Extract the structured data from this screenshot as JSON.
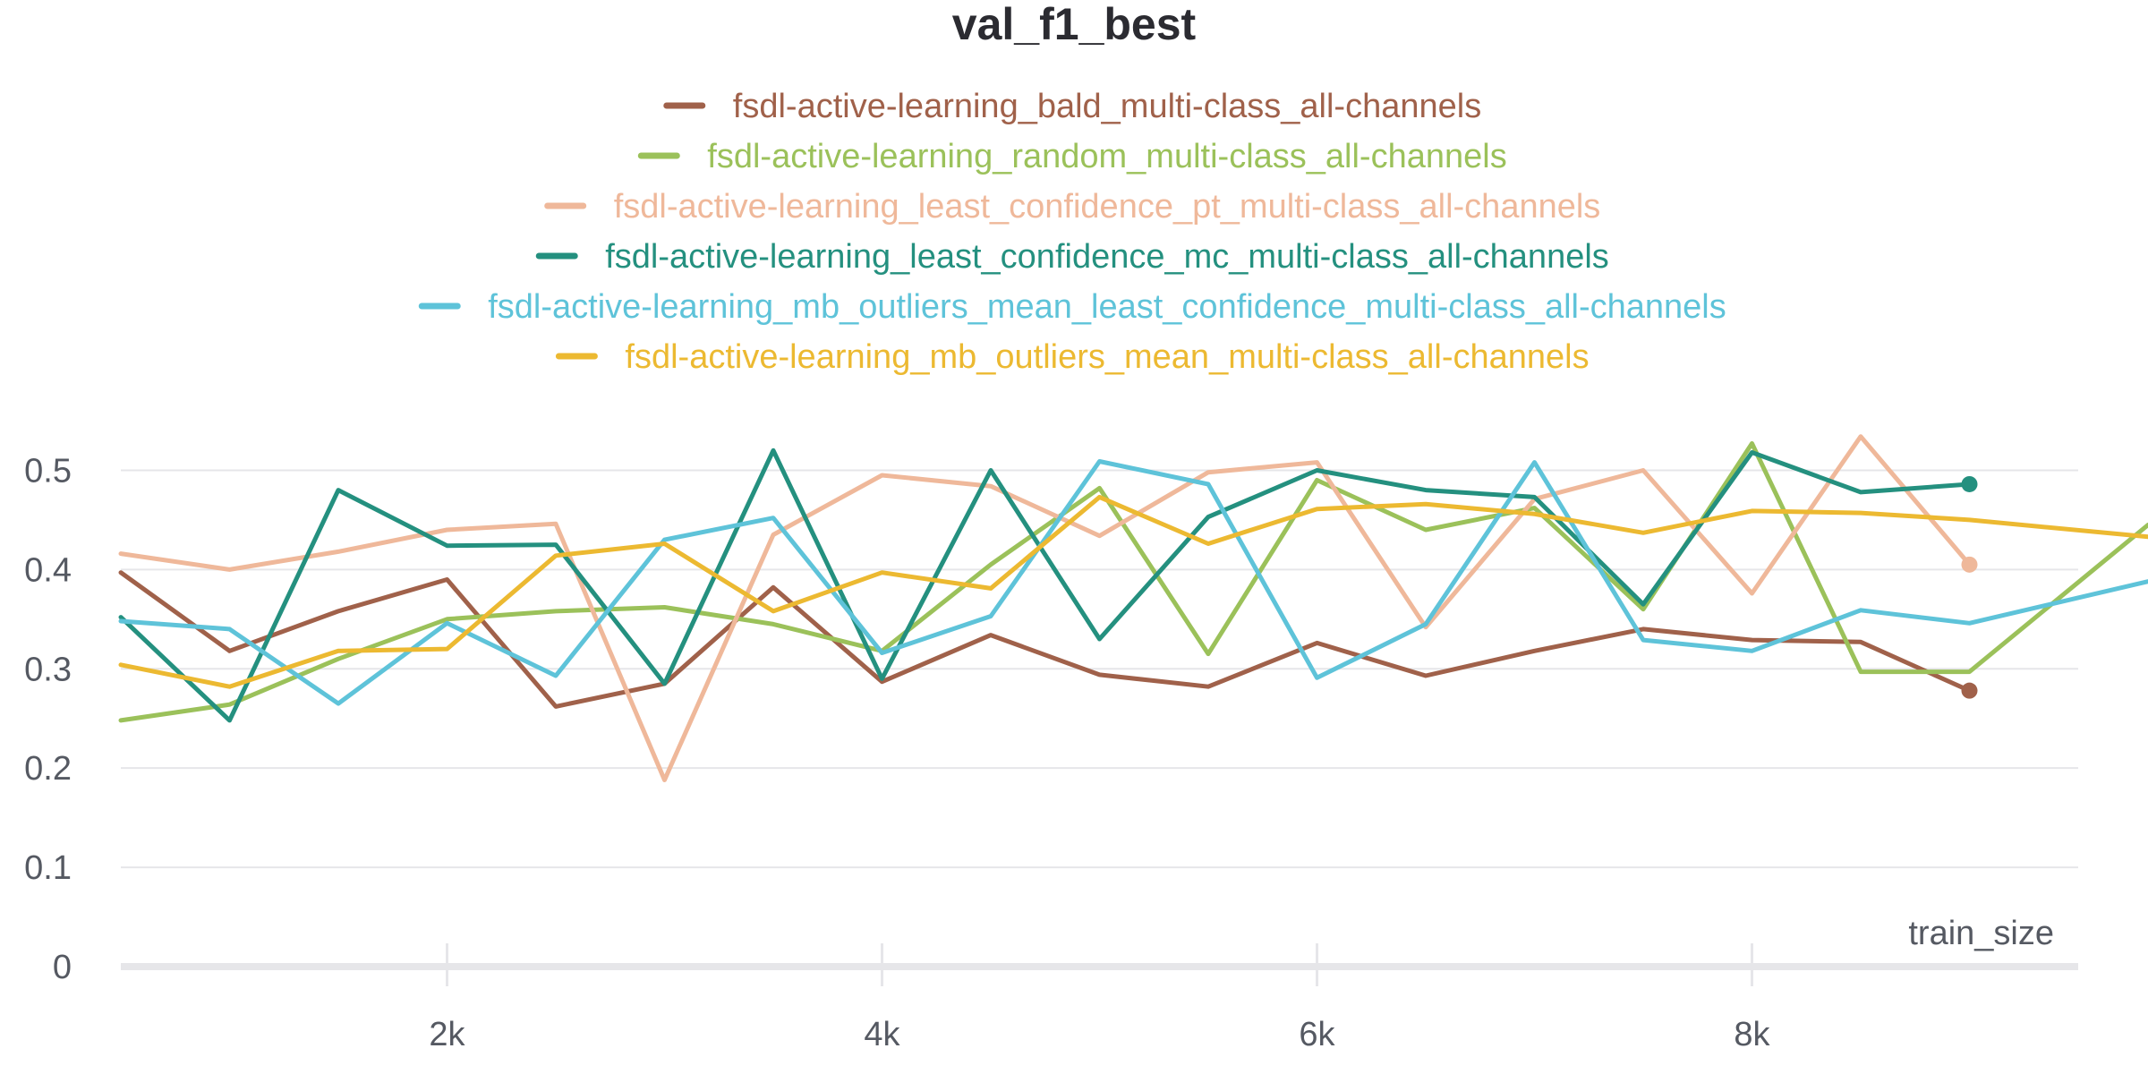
{
  "chart_data": {
    "type": "line",
    "title": "val_f1_best",
    "xlabel": "train_size",
    "ylabel": "",
    "xlim": [
      500,
      9500
    ],
    "ylim": [
      0,
      0.55
    ],
    "grid": true,
    "x_ticks": [
      2000,
      4000,
      6000,
      8000
    ],
    "x_tick_labels": [
      "2k",
      "4k",
      "6k",
      "8k"
    ],
    "y_ticks": [
      0,
      0.1,
      0.2,
      0.3,
      0.4,
      0.5
    ],
    "y_tick_labels": [
      "0",
      "0.1",
      "0.2",
      "0.3",
      "0.4",
      "0.5"
    ],
    "x": [
      500,
      1000,
      1500,
      2000,
      2500,
      3000,
      3500,
      4000,
      4500,
      5000,
      5500,
      6000,
      6500,
      7000,
      7500,
      8000,
      8500,
      9000
    ],
    "series": [
      {
        "name": "fsdl-active-learning_bald_multi-class_all-channels",
        "color": "#a0614a",
        "values": [
          0.397,
          0.318,
          0.358,
          0.39,
          0.262,
          0.285,
          0.382,
          0.287,
          0.334,
          0.294,
          0.282,
          0.326,
          0.293,
          0.318,
          0.34,
          0.329,
          0.327,
          0.278
        ],
        "end_marker": true
      },
      {
        "name": "fsdl-active-learning_random_multi-class_all-channels",
        "color": "#9bc15a",
        "values": [
          0.248,
          0.264,
          0.31,
          0.35,
          0.358,
          0.362,
          0.345,
          0.318,
          0.405,
          0.482,
          0.315,
          0.49,
          0.44,
          0.462,
          0.36,
          0.527,
          0.297,
          0.297
        ],
        "extends_to": 0.445
      },
      {
        "name": "fsdl-active-learning_least_confidence_pt_multi-class_all-channels",
        "color": "#efb89a",
        "values": [
          0.416,
          0.4,
          0.418,
          0.44,
          0.446,
          0.188,
          0.435,
          0.495,
          0.484,
          0.434,
          0.498,
          0.508,
          0.342,
          0.471,
          0.5,
          0.376,
          0.534,
          0.405
        ],
        "end_marker": true
      },
      {
        "name": "fsdl-active-learning_least_confidence_mc_multi-class_all-channels",
        "color": "#24907f",
        "values": [
          0.352,
          0.248,
          0.48,
          0.424,
          0.425,
          0.285,
          0.52,
          0.29,
          0.5,
          0.33,
          0.453,
          0.5,
          0.48,
          0.473,
          0.365,
          0.518,
          0.478,
          0.486
        ],
        "end_marker": true
      },
      {
        "name": "fsdl-active-learning_mb_outliers_mean_least_confidence_multi-class_all-channels",
        "color": "#5ec3d9",
        "values": [
          0.348,
          0.34,
          0.265,
          0.346,
          0.293,
          0.43,
          0.452,
          0.316,
          0.353,
          0.509,
          0.486,
          0.291,
          0.345,
          0.508,
          0.329,
          0.318,
          0.359,
          0.346
        ],
        "extends_to": 0.388
      },
      {
        "name": "fsdl-active-learning_mb_outliers_mean_multi-class_all-channels",
        "color": "#ecb931",
        "values": [
          0.304,
          0.282,
          0.318,
          0.32,
          0.414,
          0.426,
          0.358,
          0.397,
          0.381,
          0.473,
          0.426,
          0.461,
          0.466,
          0.456,
          0.437,
          0.459,
          0.457,
          0.45
        ],
        "extends_to": 0.433
      }
    ]
  }
}
